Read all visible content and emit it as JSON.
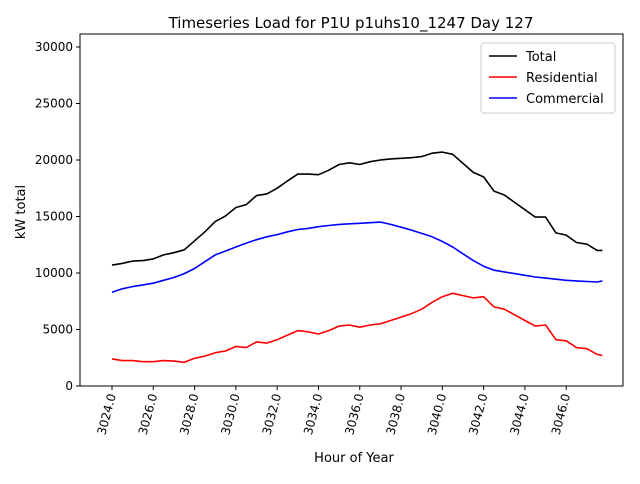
{
  "chart_data": {
    "type": "line",
    "title": "Timeseries Load for P1U p1uhs10_1247  Day 127",
    "xlabel": "Hour of Year",
    "ylabel": "kW total",
    "xlim": [
      3022.45,
      3048.75
    ],
    "ylim": [
      0,
      31150
    ],
    "grid": false,
    "legend_position": "top-right",
    "x_ticks": [
      3024,
      3026,
      3028,
      3030,
      3032,
      3034,
      3036,
      3038,
      3040,
      3042,
      3044,
      3046
    ],
    "x_tick_labels": [
      "3024.0",
      "3026.0",
      "3028.0",
      "3030.0",
      "3032.0",
      "3034.0",
      "3036.0",
      "3038.0",
      "3040.0",
      "3042.0",
      "3044.0",
      "3046.0"
    ],
    "y_ticks": [
      0,
      5000,
      10000,
      15000,
      20000,
      25000,
      30000
    ],
    "y_tick_labels": [
      "0",
      "5000",
      "10000",
      "15000",
      "20000",
      "25000",
      "30000"
    ],
    "x": [
      3024,
      3024.5,
      3025,
      3025.5,
      3026,
      3026.5,
      3027,
      3027.5,
      3028,
      3028.5,
      3029,
      3029.5,
      3030,
      3030.5,
      3031,
      3031.5,
      3032,
      3032.5,
      3033,
      3033.5,
      3034,
      3034.5,
      3035,
      3035.5,
      3036,
      3036.5,
      3037,
      3037.5,
      3038,
      3038.5,
      3039,
      3039.5,
      3040,
      3040.5,
      3041,
      3041.5,
      3042,
      3042.5,
      3043,
      3043.5,
      3044,
      3044.5,
      3045,
      3045.5,
      3046,
      3046.5,
      3047,
      3047.5,
      3047.75
    ],
    "series": [
      {
        "name": "Total",
        "color": "#000000",
        "values": [
          10700,
          10850,
          11050,
          11100,
          11250,
          11600,
          11800,
          12050,
          12850,
          13650,
          14550,
          15050,
          15800,
          16050,
          16850,
          17000,
          17500,
          18150,
          18750,
          18750,
          18700,
          19100,
          19600,
          19750,
          19600,
          19850,
          20000,
          20100,
          20150,
          20200,
          20300,
          20600,
          20700,
          20500,
          19700,
          18900,
          18500,
          17250,
          16900,
          16250,
          15600,
          14950,
          14950,
          13550,
          13350,
          12700,
          12550,
          12000,
          12000
        ]
      },
      {
        "name": "Residential",
        "color": "#ff0000",
        "values": [
          2400,
          2250,
          2250,
          2150,
          2150,
          2250,
          2200,
          2100,
          2450,
          2650,
          2950,
          3100,
          3500,
          3400,
          3900,
          3800,
          4100,
          4500,
          4900,
          4800,
          4600,
          4900,
          5300,
          5400,
          5200,
          5400,
          5500,
          5800,
          6100,
          6400,
          6800,
          7400,
          7900,
          8200,
          8000,
          7800,
          7900,
          7000,
          6800,
          6300,
          5800,
          5300,
          5400,
          4100,
          4000,
          3400,
          3300,
          2800,
          2700
        ]
      },
      {
        "name": "Commercial",
        "color": "#0000ff",
        "values": [
          8300,
          8600,
          8800,
          8950,
          9100,
          9350,
          9600,
          9950,
          10400,
          11000,
          11600,
          11950,
          12300,
          12650,
          12950,
          13200,
          13400,
          13650,
          13850,
          13950,
          14100,
          14200,
          14300,
          14350,
          14400,
          14450,
          14500,
          14300,
          14050,
          13800,
          13500,
          13200,
          12800,
          12300,
          11700,
          11100,
          10600,
          10250,
          10100,
          9950,
          9800,
          9650,
          9550,
          9450,
          9350,
          9300,
          9250,
          9200,
          9300
        ]
      }
    ]
  }
}
